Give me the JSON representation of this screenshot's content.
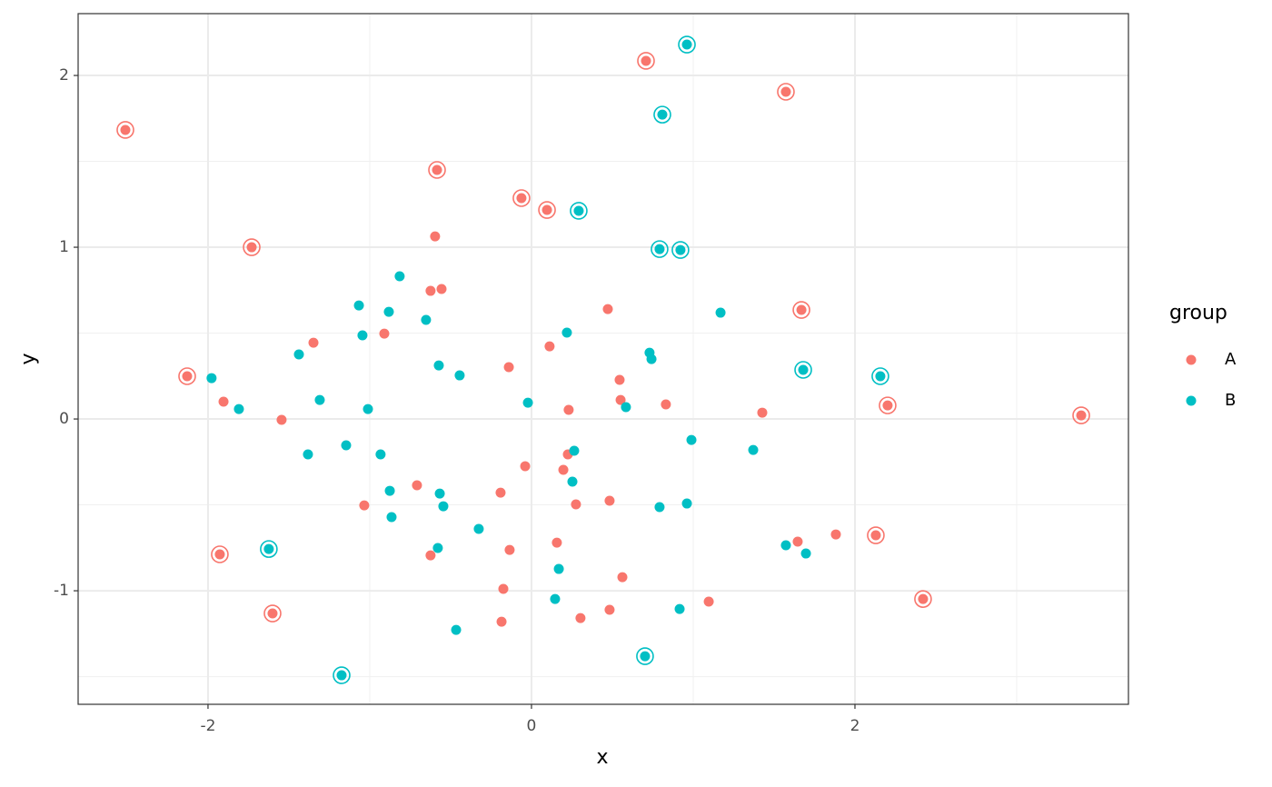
{
  "chart_data": {
    "type": "scatter",
    "x_label": "x",
    "y_label": "y",
    "legend_title": "group",
    "xlim": [
      -2.803,
      3.691
    ],
    "ylim": [
      -1.661,
      2.36
    ],
    "xticks": [
      -2,
      0,
      2
    ],
    "yticks": [
      -1,
      0,
      1,
      2
    ],
    "x_minor_breaks": [
      -1,
      1,
      3
    ],
    "y_minor_breaks": [
      -1.5,
      -0.5,
      0.5,
      1.5
    ],
    "grid": true,
    "legend_position": "right",
    "series": [
      {
        "name": "A",
        "color": "#F8766D",
        "x": [
          -2.511,
          0.708,
          1.573,
          -0.584,
          -0.062,
          0.096,
          -1.73,
          1.669,
          -2.129,
          2.202,
          3.399,
          -1.927,
          2.129,
          -1.601,
          2.421,
          -0.596,
          -0.624,
          -0.556,
          0.472,
          -1.348,
          -0.91,
          0.112,
          -0.14,
          0.545,
          -1.904,
          0.551,
          0.831,
          0.23,
          1.427,
          -1.545,
          -0.039,
          0.225,
          0.197,
          -0.708,
          -0.191,
          -1.034,
          0.275,
          0.483,
          -0.135,
          -0.624,
          0.157,
          1.646,
          1.882,
          0.562,
          -0.174,
          1.096,
          0.483,
          0.303,
          -0.185
        ],
        "y": [
          1.683,
          2.085,
          1.905,
          1.45,
          1.286,
          1.217,
          1.0,
          0.635,
          0.249,
          0.079,
          0.021,
          -0.788,
          -0.677,
          -1.132,
          -1.048,
          1.063,
          0.746,
          0.757,
          0.64,
          0.444,
          0.497,
          0.423,
          0.302,
          0.228,
          0.101,
          0.111,
          0.085,
          0.053,
          0.037,
          -0.005,
          -0.275,
          -0.206,
          -0.296,
          -0.386,
          -0.429,
          -0.503,
          -0.497,
          -0.476,
          -0.762,
          -0.794,
          -0.72,
          -0.714,
          -0.672,
          -0.921,
          -0.989,
          -1.063,
          -1.111,
          -1.159,
          -1.18
        ],
        "highlighted": [
          true,
          true,
          true,
          true,
          true,
          true,
          true,
          true,
          true,
          true,
          true,
          true,
          true,
          true,
          true,
          false,
          false,
          false,
          false,
          false,
          false,
          false,
          false,
          false,
          false,
          false,
          false,
          false,
          false,
          false,
          false,
          false,
          false,
          false,
          false,
          false,
          false,
          false,
          false,
          false,
          false,
          false,
          false,
          false,
          false,
          false,
          false,
          false,
          false
        ]
      },
      {
        "name": "B",
        "color": "#00BFC4",
        "x": [
          0.961,
          0.809,
          0.292,
          0.792,
          0.921,
          1.68,
          2.157,
          -1.624,
          0.702,
          -1.174,
          -0.815,
          -1.067,
          -0.882,
          -0.652,
          -1.045,
          -1.438,
          0.219,
          1.169,
          0.73,
          0.742,
          -0.573,
          -0.444,
          -1.978,
          -1.309,
          -0.022,
          -1.011,
          -1.809,
          0.584,
          0.989,
          1.371,
          -1.146,
          -1.382,
          -0.933,
          0.264,
          0.253,
          -0.876,
          -0.567,
          -0.545,
          -0.865,
          0.961,
          0.792,
          -0.326,
          1.573,
          1.697,
          -0.579,
          0.169,
          0.146,
          0.916,
          -0.466
        ],
        "y": [
          2.18,
          1.772,
          1.212,
          0.989,
          0.984,
          0.286,
          0.249,
          -0.757,
          -1.381,
          -1.492,
          0.831,
          0.661,
          0.624,
          0.577,
          0.487,
          0.376,
          0.503,
          0.619,
          0.386,
          0.349,
          0.312,
          0.254,
          0.238,
          0.111,
          0.095,
          0.058,
          0.058,
          0.069,
          -0.122,
          -0.18,
          -0.153,
          -0.206,
          -0.206,
          -0.185,
          -0.365,
          -0.418,
          -0.434,
          -0.508,
          -0.571,
          -0.492,
          -0.513,
          -0.64,
          -0.735,
          -0.783,
          -0.751,
          -0.873,
          -1.048,
          -1.106,
          -1.228
        ],
        "highlighted": [
          true,
          true,
          true,
          true,
          true,
          true,
          true,
          true,
          true,
          true,
          false,
          false,
          false,
          false,
          false,
          false,
          false,
          false,
          false,
          false,
          false,
          false,
          false,
          false,
          false,
          false,
          false,
          false,
          false,
          false,
          false,
          false,
          false,
          false,
          false,
          false,
          false,
          false,
          false,
          false,
          false,
          false,
          false,
          false,
          false,
          false,
          false,
          false,
          false
        ]
      }
    ]
  }
}
